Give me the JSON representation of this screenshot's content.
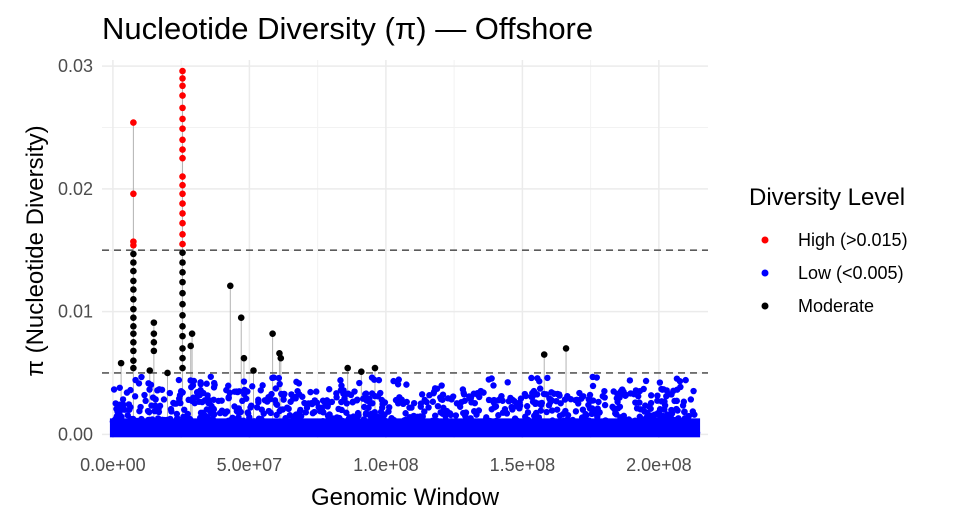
{
  "chart_data": {
    "type": "scatter",
    "title": "Nucleotide Diversity (π) — Offshore",
    "xlabel": "Genomic Window",
    "ylabel": "π (Nucleotide Diversity)",
    "xlim": [
      -4000000,
      218000000
    ],
    "ylim": [
      -0.0003,
      0.0305
    ],
    "x_ticks": [
      0,
      50000000,
      100000000,
      150000000,
      200000000
    ],
    "x_tick_labels": [
      "0.0e+00",
      "5.0e+07",
      "1.0e+08",
      "1.5e+08",
      "2.0e+08"
    ],
    "y_ticks": [
      0,
      0.01,
      0.02,
      0.03
    ],
    "y_tick_labels": [
      "0.00",
      "0.01",
      "0.02",
      "0.03"
    ],
    "grid": true,
    "reference_lines": [
      0.005,
      0.015
    ],
    "legend": {
      "title": "Diversity Level",
      "position": "right",
      "entries": [
        {
          "label": "High (>0.015)",
          "color": "#ff0000"
        },
        {
          "label": "Low (<0.005)",
          "color": "#0000ff"
        },
        {
          "label": "Moderate",
          "color": "#000000"
        }
      ]
    },
    "series": [
      {
        "name": "High (>0.015)",
        "color": "#ff0000",
        "points": [
          [
            7500000,
            0.0254
          ],
          [
            7500000,
            0.0196
          ],
          [
            7500000,
            0.0157
          ],
          [
            7500000,
            0.0154
          ],
          [
            25500000,
            0.0296
          ],
          [
            25500000,
            0.029
          ],
          [
            25500000,
            0.0284
          ],
          [
            25500000,
            0.0276
          ],
          [
            25500000,
            0.0266
          ],
          [
            25500000,
            0.0257
          ],
          [
            25500000,
            0.0249
          ],
          [
            25500000,
            0.024
          ],
          [
            25500000,
            0.0232
          ],
          [
            25500000,
            0.0225
          ],
          [
            25500000,
            0.021
          ],
          [
            25500000,
            0.0203
          ],
          [
            25500000,
            0.0196
          ],
          [
            25500000,
            0.0188
          ],
          [
            25500000,
            0.018
          ],
          [
            25500000,
            0.0172
          ],
          [
            25500000,
            0.0163
          ],
          [
            25500000,
            0.0155
          ]
        ]
      },
      {
        "name": "Moderate",
        "color": "#000000",
        "points": [
          [
            7500000,
            0.0147
          ],
          [
            7500000,
            0.014
          ],
          [
            7500000,
            0.0133
          ],
          [
            7500000,
            0.0125
          ],
          [
            7500000,
            0.0118
          ],
          [
            7500000,
            0.011
          ],
          [
            7500000,
            0.0102
          ],
          [
            7500000,
            0.0095
          ],
          [
            7500000,
            0.0088
          ],
          [
            7500000,
            0.0082
          ],
          [
            7500000,
            0.0075
          ],
          [
            7500000,
            0.0068
          ],
          [
            7500000,
            0.006
          ],
          [
            7500000,
            0.0054
          ],
          [
            3000000,
            0.0058
          ],
          [
            15000000,
            0.0091
          ],
          [
            15000000,
            0.0082
          ],
          [
            15000000,
            0.0075
          ],
          [
            15000000,
            0.0068
          ],
          [
            13500000,
            0.0052
          ],
          [
            20000000,
            0.005
          ],
          [
            25500000,
            0.0148
          ],
          [
            25500000,
            0.014
          ],
          [
            25500000,
            0.0132
          ],
          [
            25500000,
            0.0124
          ],
          [
            25500000,
            0.0115
          ],
          [
            25500000,
            0.0106
          ],
          [
            25500000,
            0.0097
          ],
          [
            25500000,
            0.0088
          ],
          [
            25500000,
            0.008
          ],
          [
            25500000,
            0.007
          ],
          [
            25500000,
            0.0062
          ],
          [
            25500000,
            0.0054
          ],
          [
            29000000,
            0.0082
          ],
          [
            28500000,
            0.0072
          ],
          [
            43000000,
            0.0121
          ],
          [
            47000000,
            0.0095
          ],
          [
            48000000,
            0.0062
          ],
          [
            51500000,
            0.0052
          ],
          [
            58500000,
            0.0082
          ],
          [
            61000000,
            0.0066
          ],
          [
            61500000,
            0.0062
          ],
          [
            86000000,
            0.0054
          ],
          [
            91000000,
            0.0051
          ],
          [
            96000000,
            0.0054
          ],
          [
            158000000,
            0.0065
          ],
          [
            166000000,
            0.007
          ]
        ]
      }
    ],
    "low_band": {
      "label": "Low (<0.005)",
      "color": "#0000ff",
      "x_range": [
        0,
        214000000
      ],
      "y_range": [
        0.0,
        0.0049
      ]
    }
  }
}
